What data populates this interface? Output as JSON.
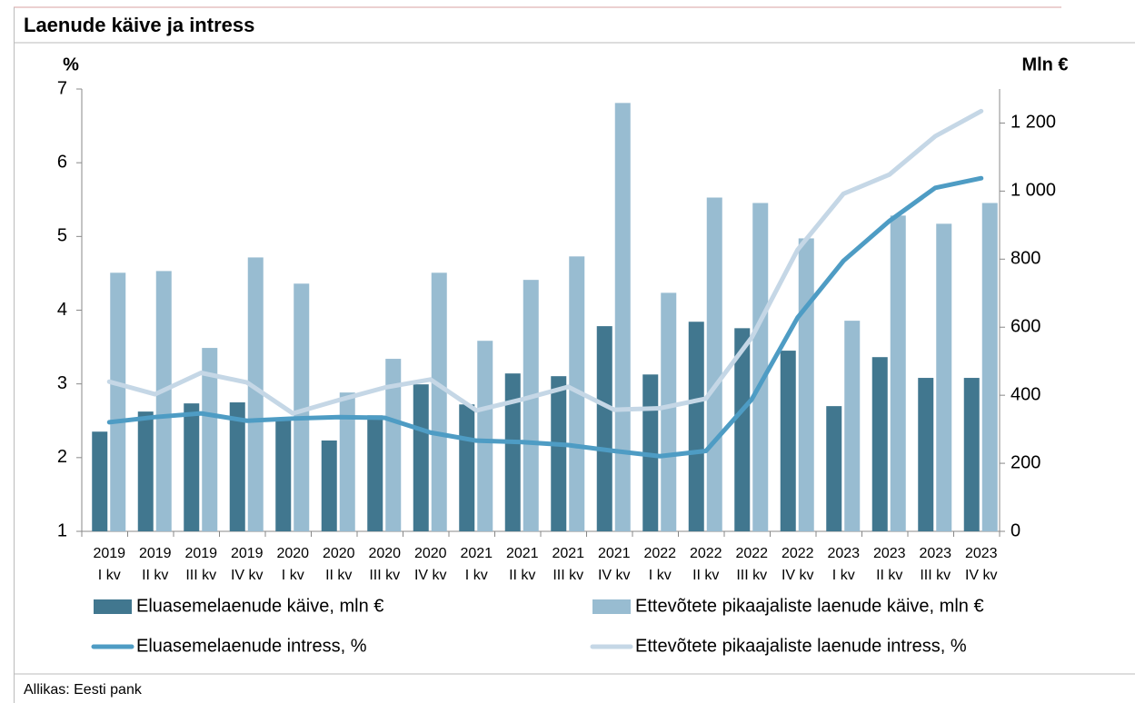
{
  "chart_data": {
    "type": "bar",
    "title": "Laenude käive ja intress",
    "y_label": "%",
    "y2_label": "Mln €",
    "source": "Allikas: Eesti pank",
    "categories": [
      [
        "2019",
        "I kv"
      ],
      [
        "2019",
        "II kv"
      ],
      [
        "2019",
        "III kv"
      ],
      [
        "2019",
        "IV kv"
      ],
      [
        "2020",
        "I kv"
      ],
      [
        "2020",
        "II kv"
      ],
      [
        "2020",
        "III kv"
      ],
      [
        "2020",
        "IV kv"
      ],
      [
        "2021",
        "I kv"
      ],
      [
        "2021",
        "II kv"
      ],
      [
        "2021",
        "III kv"
      ],
      [
        "2021",
        "IV kv"
      ],
      [
        "2022",
        "I kv"
      ],
      [
        "2022",
        "II kv"
      ],
      [
        "2022",
        "III kv"
      ],
      [
        "2022",
        "IV kv"
      ],
      [
        "2023",
        "I kv"
      ],
      [
        "2023",
        "II kv"
      ],
      [
        "2023",
        "III kv"
      ],
      [
        "2023",
        "IV kv"
      ]
    ],
    "ylim": [
      1,
      7
    ],
    "yticks": [
      1,
      2,
      3,
      4,
      5,
      6,
      7
    ],
    "y2lim": [
      0,
      1300
    ],
    "y2ticks": [
      0,
      200,
      400,
      600,
      800,
      {
        "value": 1000,
        "label": "1 000"
      },
      {
        "value": 1200,
        "label": "1 200"
      }
    ],
    "series": [
      {
        "name": "Eluasemelaenude käive, mln €",
        "type": "bar",
        "axis": "y2",
        "color": "#41778f",
        "values": [
          293,
          352,
          376,
          379,
          328,
          267,
          341,
          432,
          373,
          464,
          456,
          603,
          461,
          616,
          597,
          531,
          368,
          512,
          451,
          451
        ]
      },
      {
        "name": "Ettevõtete pikaajaliste laenude käive, mln €",
        "type": "bar",
        "axis": "y2",
        "color": "#98bcd1",
        "values": [
          760,
          765,
          539,
          805,
          728,
          408,
          507,
          760,
          560,
          739,
          808,
          1259,
          701,
          981,
          965,
          861,
          619,
          928,
          904,
          965
        ]
      },
      {
        "name": "Eluasemelaenude intress, %",
        "type": "line",
        "axis": "y",
        "color": "#4e9cc4",
        "values": [
          2.48,
          2.55,
          2.6,
          2.5,
          2.53,
          2.55,
          2.54,
          2.34,
          2.23,
          2.21,
          2.17,
          2.09,
          2.02,
          2.09,
          2.79,
          3.9,
          4.67,
          5.21,
          5.66,
          5.79
        ]
      },
      {
        "name": "Ettevõtete pikaajaliste laenude intress, %",
        "type": "line",
        "axis": "y",
        "color": "#c5d7e6",
        "values": [
          3.03,
          2.86,
          3.15,
          3.02,
          2.6,
          2.78,
          2.95,
          3.06,
          2.64,
          2.79,
          2.96,
          2.65,
          2.67,
          2.8,
          3.63,
          4.82,
          5.58,
          5.84,
          6.36,
          6.7
        ]
      }
    ]
  }
}
